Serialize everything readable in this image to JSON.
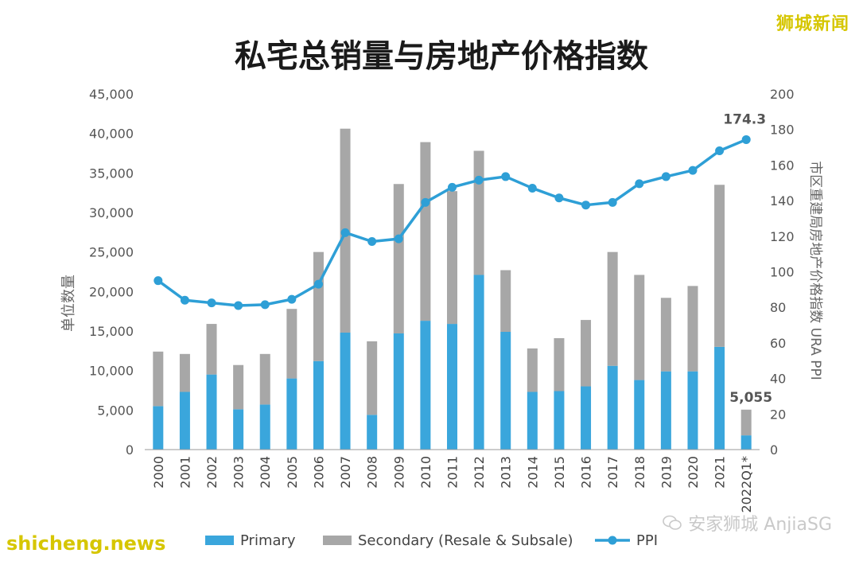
{
  "watermarks": {
    "top_right": "狮城新闻",
    "bottom_left": "shicheng.news",
    "bottom_right": "安家狮城 AnjiaSG"
  },
  "colors": {
    "primary": "#3aa6dc",
    "secondary": "#a7a7a7",
    "ppi": "#2e9fd6"
  },
  "chart_data": {
    "type": "bar",
    "title": "私宅总销量与房地产价格指数",
    "ylabel": "单位数量",
    "ylabel_right": "市区重建局房地产价格指数 URA PPI",
    "ylim": [
      0,
      45000
    ],
    "yticks": [
      "0",
      "5,000",
      "10,000",
      "15,000",
      "20,000",
      "25,000",
      "30,000",
      "35,000",
      "40,000",
      "45,000"
    ],
    "ylim_right": [
      0,
      200
    ],
    "yticks_right": [
      "0",
      "20",
      "40",
      "60",
      "80",
      "100",
      "120",
      "140",
      "160",
      "180",
      "200"
    ],
    "categories": [
      "2000",
      "2001",
      "2002",
      "2003",
      "2004",
      "2005",
      "2006",
      "2007",
      "2008",
      "2009",
      "2010",
      "2011",
      "2012",
      "2013",
      "2014",
      "2015",
      "2016",
      "2017",
      "2018",
      "2019",
      "2020",
      "2021",
      "2022Q1*"
    ],
    "series": [
      {
        "name": "Primary",
        "kind": "stacked-bar",
        "values": [
          5500,
          7300,
          9500,
          5100,
          5700,
          9000,
          11200,
          14800,
          4400,
          14700,
          16300,
          15900,
          22100,
          14900,
          7300,
          7400,
          8000,
          10600,
          8800,
          9900,
          9900,
          13000,
          1800
        ]
      },
      {
        "name": "Secondary (Resale & Subsale)",
        "kind": "stacked-bar",
        "values": [
          6900,
          4800,
          6400,
          5600,
          6400,
          8800,
          13800,
          25800,
          9300,
          18900,
          22600,
          16800,
          15700,
          7800,
          5500,
          6700,
          8400,
          14400,
          13300,
          9300,
          10800,
          20500,
          3255
        ]
      },
      {
        "name": "PPI",
        "kind": "line",
        "axis": "right",
        "values": [
          95,
          84,
          82.5,
          81,
          81.5,
          84.5,
          93,
          122,
          117,
          118.5,
          139,
          147.5,
          151.5,
          153.5,
          147,
          141.5,
          137.5,
          139,
          149.5,
          153.5,
          157,
          168,
          174.3
        ]
      }
    ],
    "annotations": {
      "ppi_last": "174.3",
      "total_last": "5,055"
    },
    "legend_position": "bottom",
    "grid": false
  }
}
